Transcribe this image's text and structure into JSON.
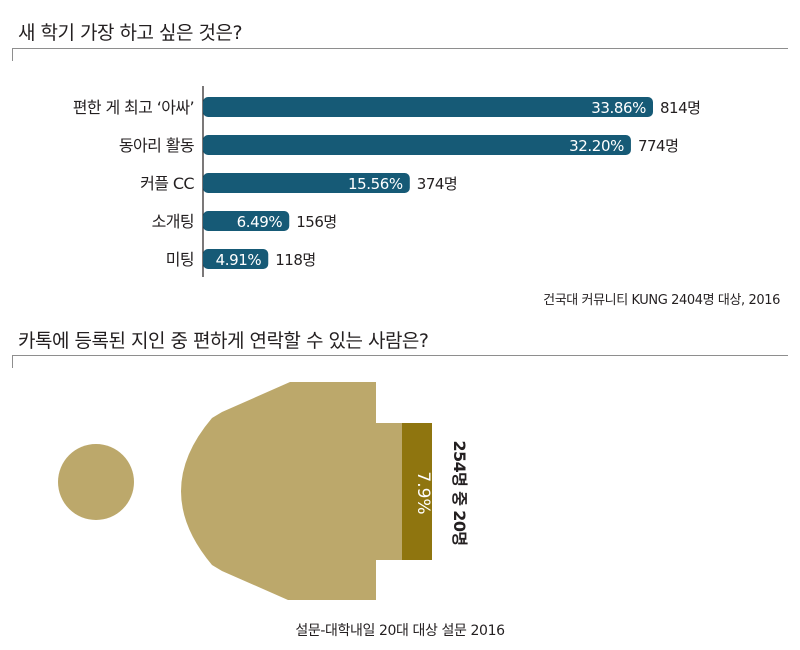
{
  "question1": {
    "title": "새 학기 가장 하고 싶은 것은?",
    "source": "건국대 커뮤니티 KUNG 2404명 대상, 2016"
  },
  "question2": {
    "title": "카톡에 등록된 지인 중 편하게 연락할 수 있는 사람은?",
    "percent_label": "7.9%",
    "count_label": "254명 중 20명",
    "source": "설문-대학내일 20대 대상 설문 2016"
  },
  "colors": {
    "bar": "#165a76",
    "person": "#bca86b",
    "highlight": "#8f750f",
    "text": "#231f20",
    "rule": "#8e8e8e"
  },
  "chart_data": [
    {
      "type": "bar",
      "orientation": "horizontal",
      "title": "새 학기 가장 하고 싶은 것은?",
      "categories": [
        "편한 게 최고 ‘아싸’",
        "동아리 활동",
        "커플 CC",
        "소개팅",
        "미팅"
      ],
      "values": [
        33.86,
        32.2,
        15.56,
        6.49,
        4.91
      ],
      "value_labels": [
        "33.86%",
        "32.20%",
        "15.56%",
        "6.49%",
        "4.91%"
      ],
      "counts": [
        "814명",
        "774명",
        "374명",
        "156명",
        "118명"
      ],
      "grid": false
    },
    {
      "type": "bar",
      "title": "카톡에 등록된 지인 중 편하게 연락할 수 있는 사람은?",
      "values": [
        7.9
      ],
      "value_labels": [
        "7.9%"
      ],
      "note": "254명 중 20명"
    }
  ]
}
